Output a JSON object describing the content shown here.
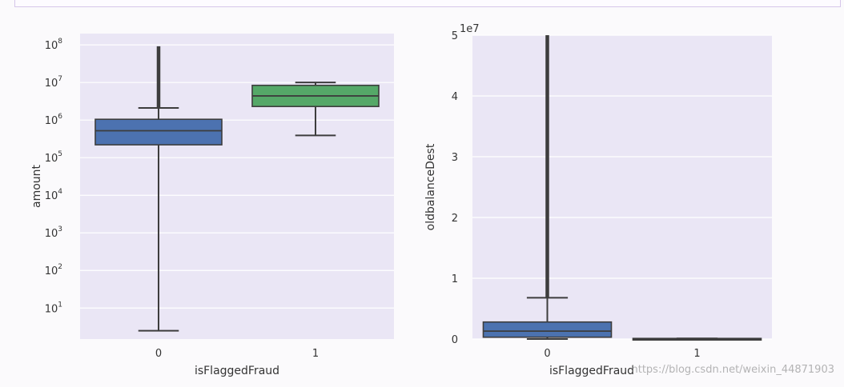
{
  "chart_data": [
    {
      "type": "box",
      "xlabel": "isFlaggedFraud",
      "ylabel": "amount",
      "yscale": "log",
      "ylim": [
        1.5,
        200000000
      ],
      "yticks": [
        10,
        100,
        1000,
        10000,
        100000,
        1000000,
        10000000,
        100000000
      ],
      "yticklabels": [
        "10",
        "10",
        "10",
        "10",
        "10",
        "10",
        "10",
        "10"
      ],
      "yticklabel_exponents": [
        "1",
        "2",
        "3",
        "4",
        "5",
        "6",
        "7",
        "8"
      ],
      "categories": [
        "0",
        "1"
      ],
      "boxes": [
        {
          "category": "0",
          "color": "#4c72b0",
          "whislo": 2.5,
          "q1": 220000,
          "med": 520000,
          "q3": 1050000,
          "whishi": 2100000,
          "outliers_min": 2100000,
          "outliers_max": 92000000
        },
        {
          "category": "1",
          "color": "#55a868",
          "whislo": 390000,
          "q1": 2300000,
          "med": 4400000,
          "q3": 8400000,
          "whishi": 10000000,
          "outliers_min": null,
          "outliers_max": null
        }
      ]
    },
    {
      "type": "box",
      "xlabel": "isFlaggedFraud",
      "ylabel": "oldbalanceDest",
      "yscale": "linear",
      "offset_text": "1e7",
      "ylim": [
        0,
        5
      ],
      "yticks": [
        0,
        1,
        2,
        3,
        4,
        5
      ],
      "yticklabels": [
        "0",
        "1",
        "2",
        "3",
        "4",
        "5"
      ],
      "categories": [
        "0",
        "1"
      ],
      "boxes": [
        {
          "category": "0",
          "color": "#4c72b0",
          "whislo": 0,
          "q1": 0.03,
          "med": 0.13,
          "q3": 0.28,
          "whishi": 0.68,
          "outliers_min": 0.68,
          "outliers_max": 5.0
        },
        {
          "category": "1",
          "color": "#4c72b0",
          "whislo": 0,
          "q1": 0,
          "med": 0,
          "q3": 0.01,
          "whishi": 0.01,
          "outliers_min": null,
          "outliers_max": null
        }
      ]
    }
  ],
  "watermark": "https://blog.csdn.net/weixin_44871903",
  "colors": {
    "panel_bg": "#eae6f5",
    "grid": "#ffffff",
    "axis_text": "#333333"
  }
}
